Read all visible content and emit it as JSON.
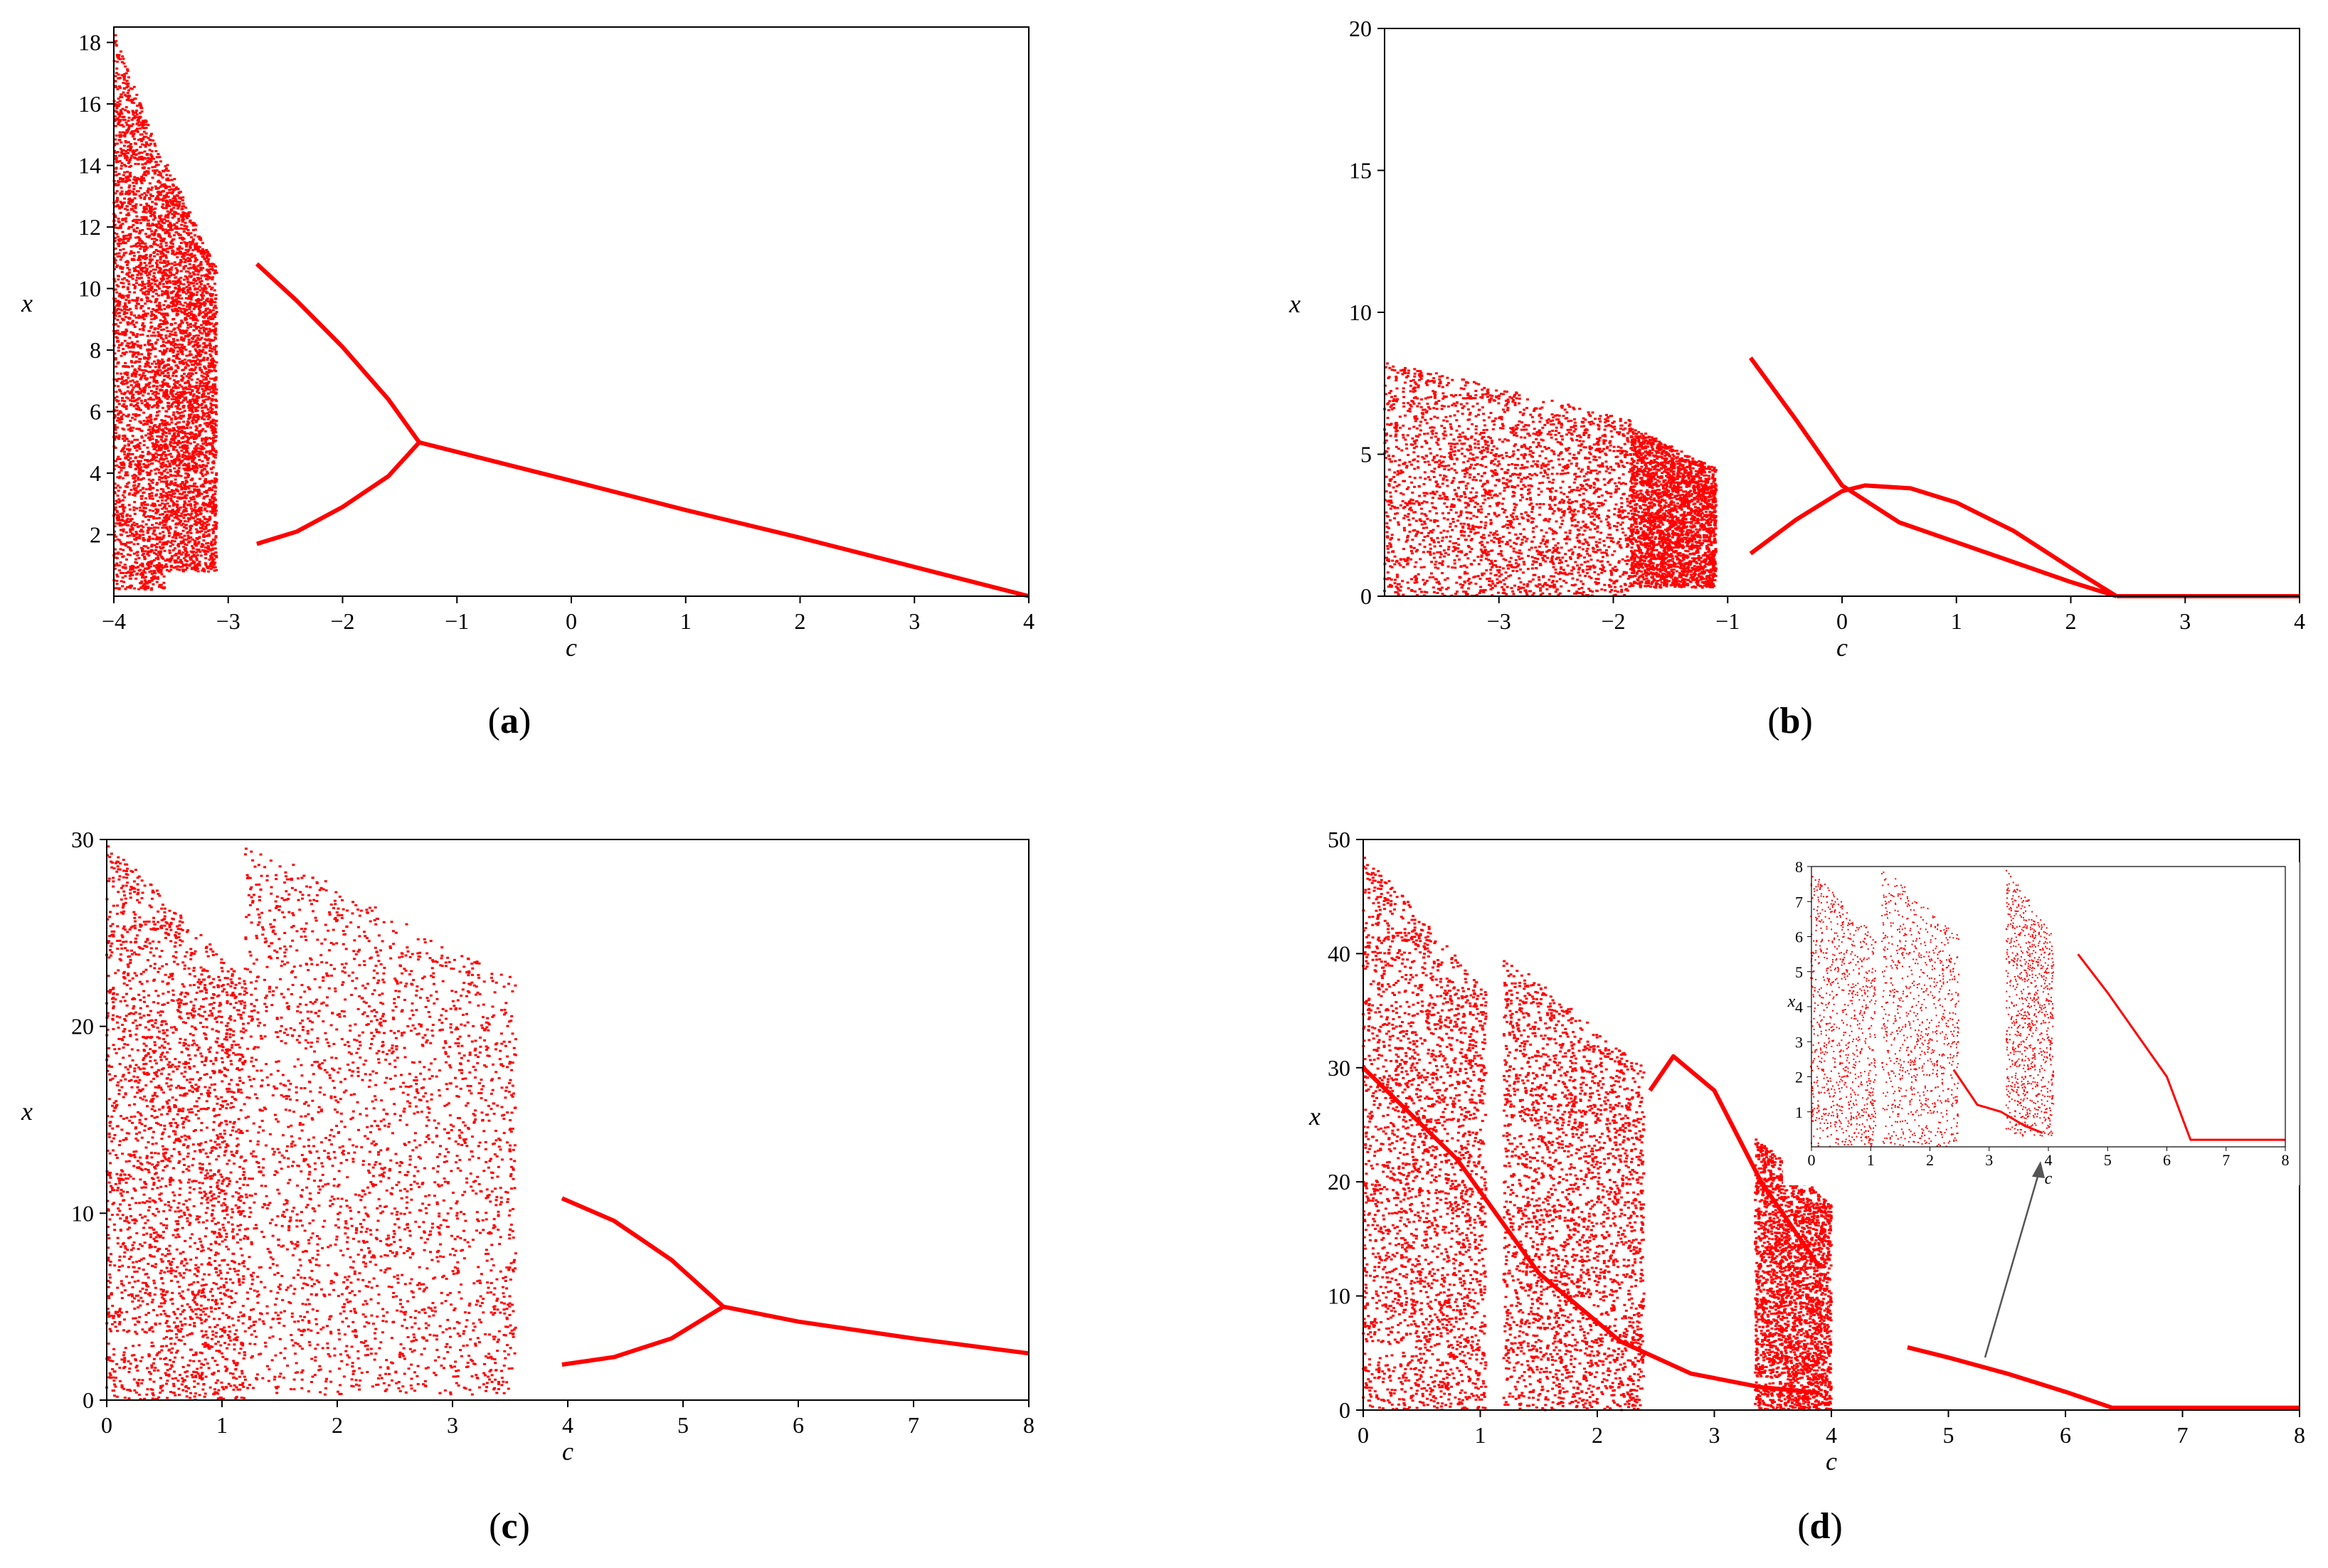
{
  "chart_data": [
    {
      "type": "scatter",
      "panel_label": "(a)",
      "caption_open": "(",
      "caption_letter": "a",
      "caption_close": ")",
      "xlabel": "c",
      "ylabel": "x",
      "xlim": [
        -4,
        4
      ],
      "ylim": [
        0,
        18.5
      ],
      "xticks": [
        -4,
        -3,
        -2,
        -1,
        0,
        1,
        2,
        3,
        4
      ],
      "yticks": [
        2,
        4,
        6,
        8,
        10,
        12,
        14,
        16,
        18
      ],
      "color": "#ff0000",
      "curves": [
        {
          "name": "",
          "x": [
            -1.33,
            0,
            1,
            2,
            3,
            4
          ],
          "y": [
            5,
            3.75,
            2.8,
            1.9,
            0.95,
            0
          ]
        },
        {
          "name": "",
          "x": [
            -2.75,
            -2.4,
            -2.0,
            -1.6,
            -1.33
          ],
          "y": [
            10.8,
            9.6,
            8.1,
            6.4,
            5.0
          ]
        },
        {
          "name": "",
          "x": [
            -2.75,
            -2.4,
            -2.0,
            -1.6,
            -1.33
          ],
          "y": [
            1.7,
            2.1,
            2.9,
            3.9,
            5.0
          ]
        }
      ],
      "bands": [
        {
          "x0": -4,
          "x1": -3.55,
          "ytop": 18.4,
          "ybot": 0.2
        },
        {
          "x0": -3.55,
          "x1": -3.1,
          "ytop": 14.2,
          "ybot": 0.8
        }
      ],
      "grid": false
    },
    {
      "type": "scatter",
      "panel_label": "(b)",
      "caption_open": "(",
      "caption_letter": "b",
      "caption_close": ")",
      "xlabel": "c",
      "ylabel": "x",
      "xlim": [
        -4,
        4
      ],
      "ylim": [
        0,
        20
      ],
      "xticks": [
        -3,
        -2,
        -1,
        0,
        1,
        2,
        3,
        4
      ],
      "yticks": [
        0,
        5,
        10,
        15,
        20
      ],
      "color": "#ff0000",
      "curves": [
        {
          "name": "",
          "x": [
            -0.8,
            -0.4,
            0,
            0.5,
            1,
            1.5,
            2,
            2.4
          ],
          "y": [
            8.4,
            6.2,
            3.9,
            2.6,
            1.9,
            1.2,
            0.5,
            0
          ]
        },
        {
          "name": "",
          "x": [
            -0.8,
            -0.4,
            0,
            0.2,
            0.6,
            1,
            1.5,
            2,
            2.4
          ],
          "y": [
            1.5,
            2.7,
            3.7,
            3.9,
            3.8,
            3.3,
            2.3,
            1.0,
            0
          ]
        },
        {
          "name": "",
          "x": [
            2.4,
            3,
            4
          ],
          "y": [
            0,
            0,
            0
          ]
        }
      ],
      "bands": [
        {
          "x0": -4,
          "x1": -1.85,
          "ytop": 8.3,
          "ybot": 0
        },
        {
          "x0": -1.85,
          "x1": -1.1,
          "ytop": 6,
          "ybot": 0.3
        }
      ],
      "grid": false
    },
    {
      "type": "scatter",
      "panel_label": "(c)",
      "caption_open": "(",
      "caption_letter": "c",
      "caption_close": ")",
      "xlabel": "c",
      "ylabel": "x",
      "xlim": [
        0,
        8
      ],
      "ylim": [
        0,
        30
      ],
      "xticks": [
        0,
        1,
        2,
        3,
        4,
        5,
        6,
        7,
        8
      ],
      "yticks": [
        0,
        10,
        20,
        30
      ],
      "color": "#ff0000",
      "curves": [
        {
          "name": "",
          "x": [
            5.35,
            6,
            7,
            8
          ],
          "y": [
            5,
            4.2,
            3.3,
            2.5
          ]
        },
        {
          "name": "",
          "x": [
            3.95,
            4.4,
            4.9,
            5.35
          ],
          "y": [
            10.8,
            9.6,
            7.5,
            5
          ]
        },
        {
          "name": "",
          "x": [
            3.95,
            4.4,
            4.9,
            5.35
          ],
          "y": [
            1.9,
            2.3,
            3.3,
            5
          ]
        }
      ],
      "bands": [
        {
          "x0": 0,
          "x1": 1.2,
          "ytop": 30,
          "ybot": 0
        },
        {
          "x0": 1.2,
          "x1": 3.55,
          "ytop": 30,
          "ybot": 0.3
        }
      ],
      "grid": false
    },
    {
      "type": "scatter",
      "panel_label": "(d)",
      "caption_open": "(",
      "caption_letter": "d",
      "caption_close": ")",
      "xlabel": "c",
      "ylabel": "x",
      "xlim": [
        0,
        8
      ],
      "ylim": [
        0,
        50
      ],
      "xticks": [
        0,
        1,
        2,
        3,
        4,
        5,
        6,
        7,
        8
      ],
      "yticks": [
        0,
        10,
        20,
        30,
        40,
        50
      ],
      "color": "#ff0000",
      "curves": [
        {
          "name": "",
          "x": [
            4.65,
            5,
            5.5,
            6,
            6.4,
            7,
            8
          ],
          "y": [
            5.5,
            4.6,
            3.2,
            1.6,
            0.2,
            0.2,
            0.2
          ]
        },
        {
          "name": "",
          "x": [
            2.45,
            2.65,
            3.0,
            3.4,
            3.9
          ],
          "y": [
            28,
            31,
            28,
            20,
            12.5
          ]
        },
        {
          "name": "",
          "x": [
            0,
            0.8,
            1.5,
            2.2,
            2.8,
            3.4,
            3.9
          ],
          "y": [
            30,
            22,
            12,
            6,
            3.2,
            2,
            1.5
          ]
        }
      ],
      "bands": [
        {
          "x0": 0,
          "x1": 1.05,
          "ytop": 49,
          "ybot": 0
        },
        {
          "x0": 1.2,
          "x1": 2.4,
          "ytop": 40,
          "ybot": 0
        },
        {
          "x0": 3.35,
          "x1": 4.0,
          "ytop": 24,
          "ybot": 0
        }
      ],
      "inset": {
        "xlim": [
          0,
          8
        ],
        "ylim": [
          0,
          8
        ],
        "xticks": [
          0,
          1,
          2,
          3,
          4,
          5,
          6,
          7,
          8
        ],
        "yticks": [
          1,
          2,
          3,
          4,
          5,
          6,
          7,
          8
        ],
        "xlabel": "c",
        "ylabel": "x"
      },
      "grid": false
    }
  ]
}
